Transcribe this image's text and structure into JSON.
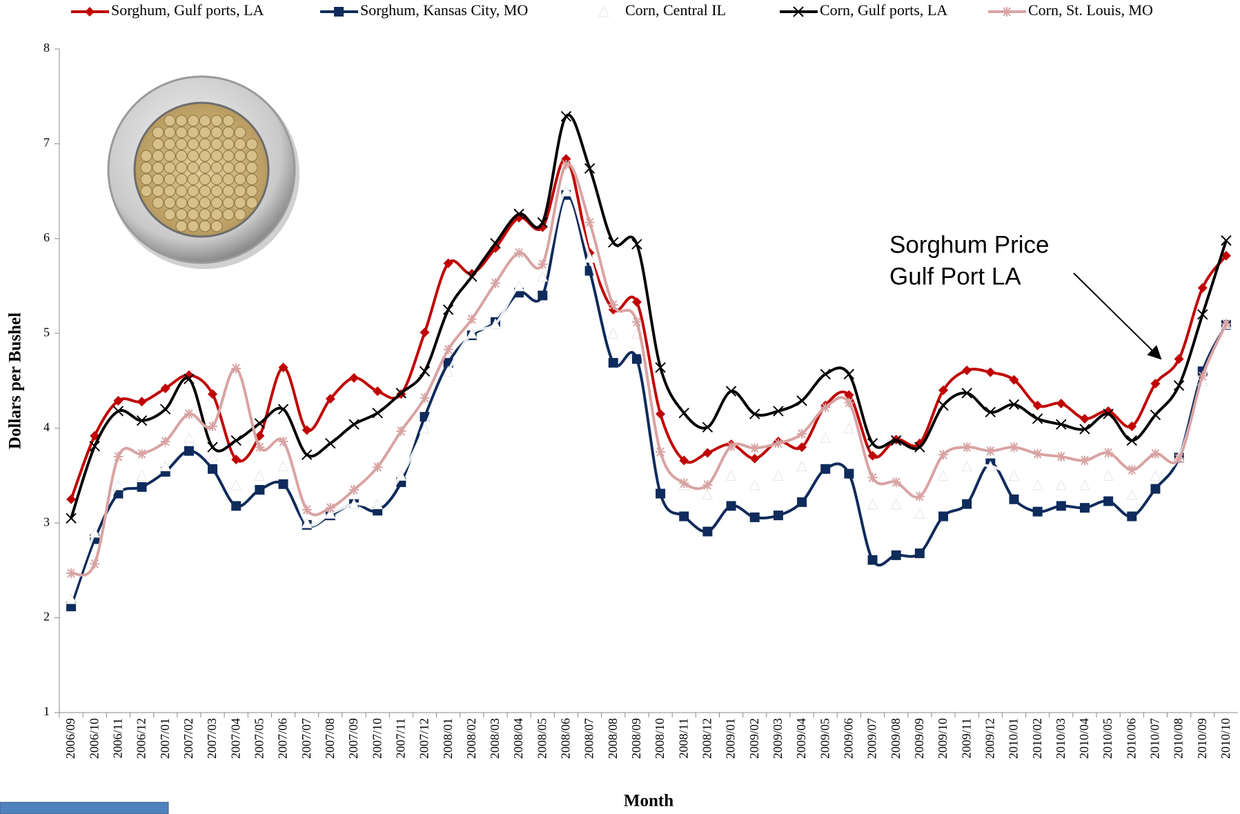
{
  "chart_data": {
    "type": "line",
    "y_label": "Dollars per Bushel",
    "x_label": "Month",
    "annotation": [
      "Sorghum Price",
      "Gulf Port LA"
    ],
    "categories": [
      "2006/09",
      "2006/10",
      "2006/11",
      "2006/12",
      "2007/01",
      "2007/02",
      "2007/03",
      "2007/04",
      "2007/05",
      "2007/06",
      "2007/07",
      "2007/08",
      "2007/09",
      "2007/10",
      "2007/11",
      "2007/12",
      "2008/01",
      "2008/02",
      "2008/03",
      "2008/04",
      "2008/05",
      "2008/06",
      "2008/07",
      "2008/08",
      "2008/09",
      "2008/10",
      "2008/11",
      "2008/12",
      "2009/01",
      "2009/02",
      "2009/03",
      "2009/04",
      "2009/05",
      "2009/06",
      "2009/07",
      "2009/08",
      "2009/09",
      "2009/10",
      "2009/11",
      "2009/12",
      "2010/01",
      "2010/02",
      "2010/03",
      "2010/04",
      "2010/05",
      "2010/06",
      "2010/07",
      "2010/08",
      "2010/09",
      "2010/10"
    ],
    "series": [
      {
        "name": "Sorghum, Gulf ports, LA",
        "color": "#c00000",
        "marker": "diamond",
        "values": [
          3.25,
          3.92,
          4.29,
          4.28,
          4.42,
          4.56,
          4.36,
          3.67,
          3.92,
          4.64,
          3.98,
          4.31,
          4.53,
          4.39,
          4.36,
          5.01,
          5.74,
          5.63,
          5.9,
          6.22,
          6.12,
          6.84,
          5.85,
          5.25,
          5.33,
          4.15,
          3.66,
          3.74,
          3.83,
          3.68,
          3.86,
          3.8,
          4.24,
          4.35,
          3.71,
          3.88,
          3.84,
          4.4,
          4.61,
          4.59,
          4.51,
          4.24,
          4.26,
          4.1,
          4.18,
          4.02,
          4.47,
          4.73,
          5.48,
          5.82
        ]
      },
      {
        "name": "Sorghum, Kansas City, MO",
        "color": "#0f2b5b",
        "marker": "square",
        "values": [
          2.12,
          2.83,
          3.31,
          3.38,
          3.54,
          3.76,
          3.57,
          3.18,
          3.35,
          3.41,
          2.98,
          3.08,
          3.2,
          3.13,
          3.43,
          4.12,
          4.69,
          4.98,
          5.12,
          5.43,
          5.4,
          6.46,
          5.66,
          4.69,
          4.73,
          3.31,
          3.07,
          2.91,
          3.18,
          3.06,
          3.08,
          3.22,
          3.57,
          3.52,
          2.61,
          2.66,
          2.68,
          3.07,
          3.2,
          3.63,
          3.25,
          3.12,
          3.18,
          3.16,
          3.23,
          3.07,
          3.36,
          3.69,
          4.6,
          5.09
        ]
      },
      {
        "name": "Corn, Central IL",
        "color": "#ffffff",
        "marker": "triangle",
        "values": [
          2.2,
          2.9,
          3.4,
          3.5,
          3.6,
          3.9,
          3.7,
          3.4,
          3.5,
          3.6,
          3.0,
          3.1,
          3.2,
          3.2,
          3.5,
          4.0,
          4.6,
          5.0,
          5.1,
          5.5,
          5.6,
          6.5,
          5.8,
          5.0,
          5.0,
          3.7,
          3.4,
          3.3,
          3.5,
          3.4,
          3.5,
          3.6,
          3.9,
          4.0,
          3.2,
          3.2,
          3.1,
          3.5,
          3.6,
          3.6,
          3.5,
          3.4,
          3.4,
          3.4,
          3.5,
          3.3,
          3.5,
          3.7,
          4.5,
          5.1
        ]
      },
      {
        "name": "Corn, Gulf ports, LA",
        "color": "#000000",
        "marker": "x",
        "values": [
          3.05,
          3.81,
          4.18,
          4.08,
          4.2,
          4.52,
          3.8,
          3.87,
          4.05,
          4.2,
          3.72,
          3.84,
          4.04,
          4.16,
          4.37,
          4.6,
          5.25,
          5.6,
          5.95,
          6.26,
          6.17,
          7.29,
          6.74,
          5.96,
          5.94,
          4.64,
          4.16,
          4.01,
          4.39,
          4.15,
          4.18,
          4.29,
          4.57,
          4.57,
          3.84,
          3.87,
          3.8,
          4.24,
          4.37,
          4.17,
          4.25,
          4.1,
          4.04,
          3.99,
          4.15,
          3.87,
          4.14,
          4.45,
          5.2,
          5.98
        ]
      },
      {
        "name": "Corn, St. Louis, MO",
        "color": "#d9a3a3",
        "marker": "asterisk",
        "values": [
          2.47,
          2.57,
          3.7,
          3.73,
          3.86,
          4.15,
          4.02,
          4.63,
          3.8,
          3.86,
          3.14,
          3.16,
          3.35,
          3.59,
          3.97,
          4.32,
          4.83,
          5.15,
          5.53,
          5.85,
          5.73,
          6.78,
          6.17,
          5.3,
          5.12,
          3.75,
          3.42,
          3.4,
          3.81,
          3.79,
          3.84,
          3.94,
          4.22,
          4.27,
          3.48,
          3.43,
          3.28,
          3.72,
          3.8,
          3.76,
          3.8,
          3.73,
          3.7,
          3.66,
          3.74,
          3.56,
          3.73,
          3.68,
          4.55,
          5.1
        ]
      }
    ],
    "ylim": [
      1,
      8
    ],
    "yticks": [
      1,
      2,
      3,
      4,
      5,
      6,
      7,
      8
    ],
    "grid": false,
    "legend": "top"
  }
}
